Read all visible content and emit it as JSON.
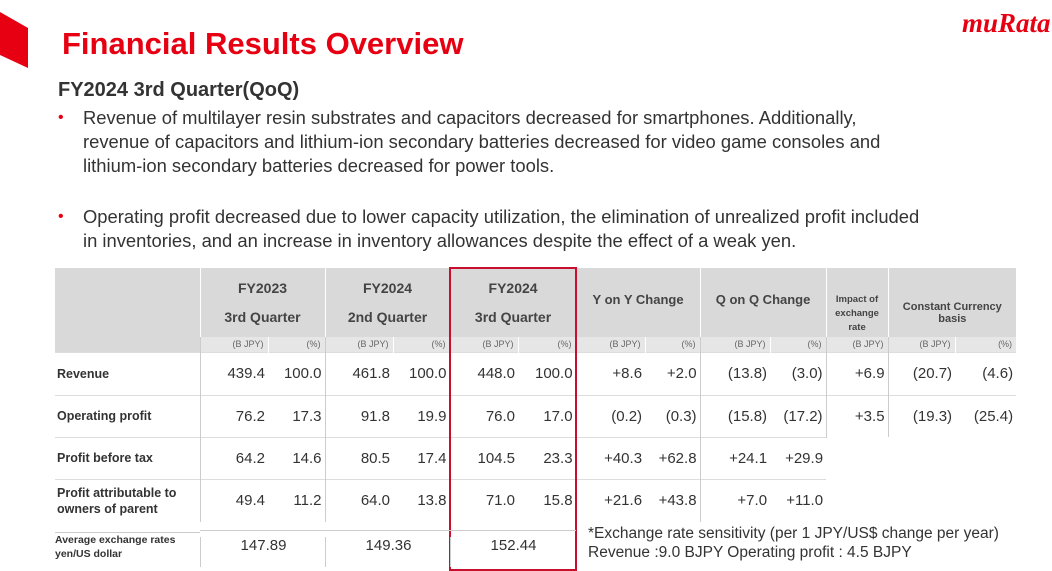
{
  "header": {
    "logo": "muRata",
    "title": "Financial Results Overview",
    "subtitle": "FY2024 3rd Quarter(QoQ)"
  },
  "bullets": [
    {
      "lines": [
        "Revenue of multilayer resin substrates and capacitors decreased for smartphones. Additionally,",
        "revenue of capacitors and lithium-ion secondary batteries decreased for video game consoles and",
        "lithium-ion secondary batteries decreased for power tools."
      ]
    },
    {
      "lines": [
        "Operating profit decreased due to lower capacity utilization, the elimination of unrealized profit included",
        "in inventories, and an increase in inventory allowances despite the effect of a weak yen."
      ]
    }
  ],
  "table": {
    "periods": [
      {
        "year": "FY2023",
        "quarter": "3rd Quarter"
      },
      {
        "year": "FY2024",
        "quarter": "2nd Quarter"
      },
      {
        "year": "FY2024",
        "quarter": "3rd Quarter"
      }
    ],
    "changes": [
      "Y on Y Change",
      "Q on Q Change"
    ],
    "impact": "Impact of exchange rate",
    "constant": "Constant Currency basis",
    "units": [
      "(B JPY)",
      "(%)",
      "(B JPY)",
      "(%)",
      "(B JPY)",
      "(%)",
      "(B JPY)",
      "(%)",
      "(B JPY)",
      "(%)",
      "(B JPY)",
      "(B JPY)",
      "(%)"
    ],
    "rows": [
      {
        "label": "Revenue",
        "cells": [
          "439.4",
          "100.0",
          "461.8",
          "100.0",
          "448.0",
          "100.0",
          "+8.6",
          "+2.0",
          "(13.8)",
          "(3.0)",
          "+6.9",
          "(20.7)",
          "(4.6)"
        ]
      },
      {
        "label": "Operating profit",
        "cells": [
          "76.2",
          "17.3",
          "91.8",
          "19.9",
          "76.0",
          "17.0",
          "(0.2)",
          "(0.3)",
          "(15.8)",
          "(17.2)",
          "+3.5",
          "(19.3)",
          "(25.4)"
        ]
      },
      {
        "label": "Profit before tax",
        "cells": [
          "64.2",
          "14.6",
          "80.5",
          "17.4",
          "104.5",
          "23.3",
          "+40.3",
          "+62.8",
          "+24.1",
          "+29.9"
        ]
      },
      {
        "label": "Profit attributable to owners of parent",
        "cells": [
          "49.4",
          "11.2",
          "64.0",
          "13.8",
          "71.0",
          "15.8",
          "+21.6",
          "+43.8",
          "+7.0",
          "+11.0"
        ]
      }
    ],
    "exchange": {
      "label": "Average exchange rates yen/US dollar",
      "values": [
        "147.89",
        "149.36",
        "152.44"
      ]
    }
  },
  "note": {
    "lines": [
      "*Exchange rate sensitivity (per 1 JPY/US$ change per year)",
      "Revenue :9.0 BJPY Operating profit : 4.5 BJPY"
    ]
  }
}
